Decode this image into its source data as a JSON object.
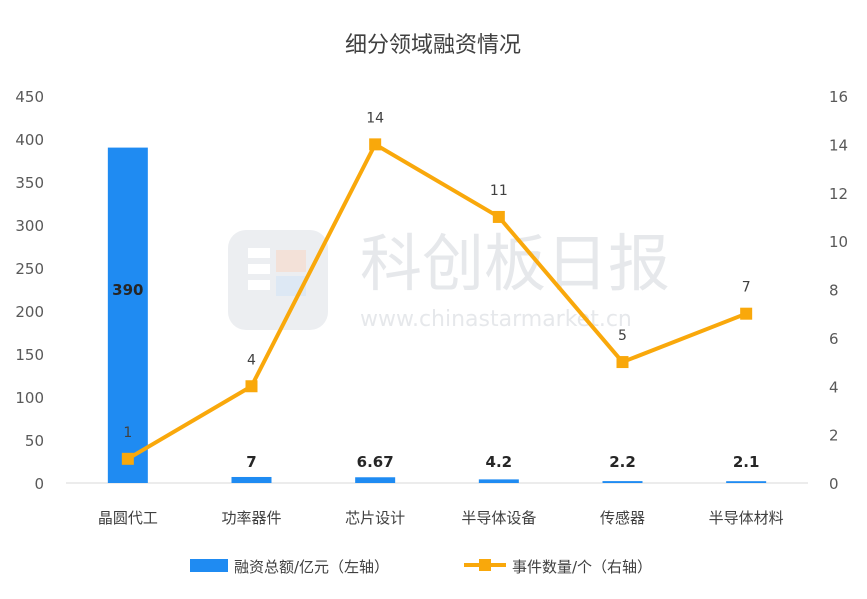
{
  "watermark": {
    "name": "科创板日报",
    "url": "www.chinastarmarket.cn"
  },
  "chart_data": {
    "type": "bar",
    "title": "细分领域融资情况",
    "categories": [
      "晶圆代工",
      "功率器件",
      "芯片设计",
      "半导体设备",
      "传感器",
      "半导体材料"
    ],
    "series": [
      {
        "name": "融资总额/亿元（左轴）",
        "type": "bar",
        "axis": "left",
        "values": [
          390,
          7,
          6.67,
          4.2,
          2.2,
          2.1
        ],
        "labels": [
          "390",
          "7",
          "6.67",
          "4.2",
          "2.2",
          "2.1"
        ],
        "color": "#1f8bf2"
      },
      {
        "name": "事件数量/个（右轴）",
        "type": "line",
        "axis": "right",
        "values": [
          1,
          4,
          14,
          11,
          5,
          7
        ],
        "labels": [
          "1",
          "4",
          "14",
          "11",
          "5",
          "7"
        ],
        "color": "#f9a80b"
      }
    ],
    "y_left": {
      "ylim": [
        0,
        450
      ],
      "ticks": [
        "0",
        "50",
        "100",
        "150",
        "200",
        "250",
        "300",
        "350",
        "400",
        "450"
      ]
    },
    "y_right": {
      "ylim": [
        0,
        16
      ],
      "ticks": [
        "0",
        "2",
        "4",
        "6",
        "8",
        "10",
        "12",
        "14",
        "16"
      ]
    },
    "grid": false,
    "legend_position": "bottom"
  }
}
